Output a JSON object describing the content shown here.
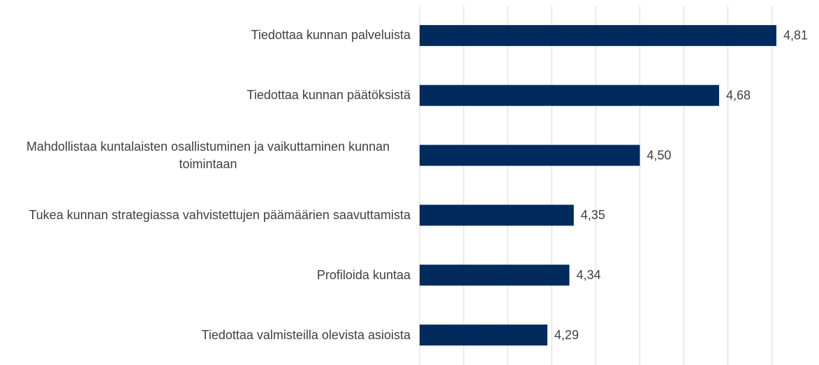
{
  "chart_data": {
    "type": "barh",
    "categories": [
      "Tiedottaa kunnan palveluista",
      "Tiedottaa kunnan päätöksistä",
      "Mahdollistaa kuntalaisten osallistuminen ja vaikuttaminen kunnan toimintaan",
      "Tukea kunnan strategiassa vahvistettujen päämäärien saavuttamista",
      "Profiloida kuntaa",
      "Tiedottaa valmisteilla olevista asioista"
    ],
    "values": [
      4.81,
      4.68,
      4.5,
      4.35,
      4.34,
      4.29
    ],
    "value_labels": [
      "4,81",
      "4,68",
      "4,50",
      "4,35",
      "4,34",
      "4,29"
    ],
    "color": "#002b5c",
    "xlim": [
      4,
      4.9
    ],
    "xticks": [
      4,
      4.1,
      4.2,
      4.3,
      4.4,
      4.5,
      4.6,
      4.7,
      4.8
    ],
    "grid": true
  }
}
